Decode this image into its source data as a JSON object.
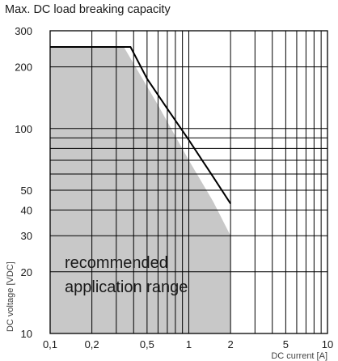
{
  "chart_data": {
    "type": "line",
    "title": "Max. DC load breaking capacity",
    "xlabel": "DC current [A]",
    "ylabel": "DC voltage [VDC]",
    "x_scale": "log",
    "y_scale": "log",
    "xlim": [
      0.1,
      10
    ],
    "ylim": [
      10,
      300
    ],
    "grid": true,
    "x_ticks": [
      {
        "value": 0.1,
        "label": "0,1"
      },
      {
        "value": 0.2,
        "label": "0,2"
      },
      {
        "value": 0.5,
        "label": "0,5"
      },
      {
        "value": 1,
        "label": "1"
      },
      {
        "value": 2,
        "label": "2"
      },
      {
        "value": 5,
        "label": "5"
      },
      {
        "value": 10,
        "label": "10"
      }
    ],
    "y_ticks": [
      {
        "value": 10,
        "label": "10"
      },
      {
        "value": 20,
        "label": "20"
      },
      {
        "value": 30,
        "label": "30"
      },
      {
        "value": 40,
        "label": "40"
      },
      {
        "value": 50,
        "label": "50"
      },
      {
        "value": 100,
        "label": "100"
      },
      {
        "value": 200,
        "label": "200"
      },
      {
        "value": 300,
        "label": "300"
      }
    ],
    "x_grid": [
      0.1,
      0.2,
      0.3,
      0.4,
      0.5,
      0.6,
      0.7,
      0.8,
      0.9,
      1,
      2,
      3,
      4,
      5,
      6,
      7,
      8,
      9,
      10
    ],
    "y_grid": [
      10,
      20,
      30,
      40,
      50,
      60,
      70,
      80,
      90,
      100,
      200,
      300
    ],
    "series": [
      {
        "color": "#000000",
        "points": [
          [
            0.1,
            250
          ],
          [
            0.38,
            250
          ],
          [
            0.5,
            175
          ],
          [
            0.7,
            125
          ],
          [
            1.0,
            88
          ],
          [
            1.5,
            58
          ],
          [
            2.0,
            43
          ]
        ]
      }
    ],
    "shaded_region": {
      "label_lines": [
        "recommended",
        "application range"
      ],
      "color": "#c8c8c8",
      "points": [
        [
          0.1,
          10
        ],
        [
          0.1,
          250
        ],
        [
          0.34,
          250
        ],
        [
          0.6,
          130
        ],
        [
          1.0,
          70
        ],
        [
          1.5,
          44
        ],
        [
          2.0,
          30
        ],
        [
          2.0,
          10
        ]
      ]
    }
  }
}
